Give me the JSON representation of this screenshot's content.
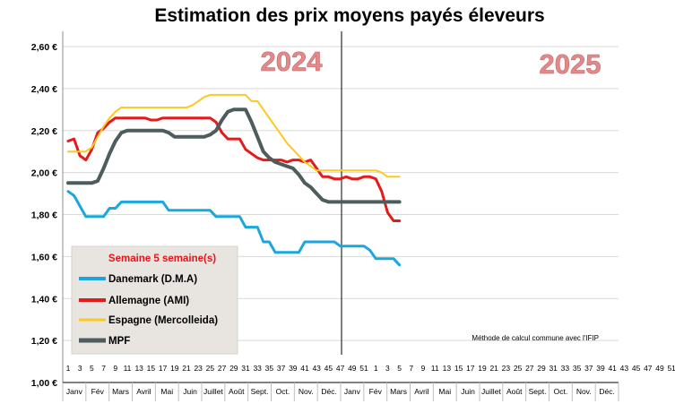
{
  "chart_data": {
    "type": "line",
    "title": "Estimation des prix moyens payés éleveurs",
    "ylim": [
      1.0,
      2.7
    ],
    "yticks": [
      "1,00 €",
      "1,20 €",
      "1,40 €",
      "1,60 €",
      "1,80 €",
      "2,00 €",
      "2,20 €",
      "2,40 €",
      "2,60 €"
    ],
    "ytick_values": [
      1.0,
      1.2,
      1.4,
      1.6,
      1.8,
      2.0,
      2.2,
      2.4,
      2.6
    ],
    "year_labels": [
      "2024",
      "2025"
    ],
    "week_ticks": [
      "1",
      "3",
      "5",
      "7",
      "9",
      "11",
      "13",
      "15",
      "17",
      "19",
      "21",
      "23",
      "25",
      "27",
      "29",
      "31",
      "33",
      "35",
      "37",
      "39",
      "41",
      "43",
      "45",
      "47",
      "49",
      "51",
      "1",
      "3",
      "5",
      "7",
      "9",
      "11",
      "13",
      "15",
      "17",
      "19",
      "21",
      "23",
      "25",
      "27",
      "29",
      "31",
      "33",
      "35",
      "37",
      "39",
      "41",
      "43",
      "45",
      "47",
      "49",
      "51"
    ],
    "months": [
      "Janv",
      "Fév",
      "Mars",
      "Avril",
      "Mai",
      "Juin",
      "Juillet",
      "Août",
      "Sept.",
      "Oct.",
      "Nov.",
      "Déc.",
      "Janv",
      "Fév",
      "Mars",
      "Avril",
      "Mai",
      "Juin",
      "Juillet",
      "Août",
      "Sept.",
      "Oct.",
      "Nov.",
      "Déc."
    ],
    "grid": true,
    "legend_position": "bottom-left",
    "legend_title": "Semaine 5 semaine(s)",
    "note": "Méthode de calcul commune avec l'IFIP",
    "series": [
      {
        "name": "Danemark (D.M.A)",
        "color": "#1aa6df",
        "x": [
          1,
          2,
          3,
          4,
          5,
          6,
          7,
          8,
          9,
          10,
          11,
          12,
          13,
          14,
          15,
          16,
          17,
          18,
          19,
          20,
          21,
          22,
          23,
          24,
          25,
          26,
          27,
          28,
          29,
          30,
          31,
          32,
          33,
          34,
          35,
          36,
          37,
          38,
          39,
          40,
          41,
          42,
          43,
          44,
          45,
          46,
          47,
          48,
          49,
          50,
          51,
          52,
          53,
          54,
          55,
          56,
          57
        ],
        "y": [
          1.91,
          1.89,
          1.84,
          1.79,
          1.79,
          1.79,
          1.79,
          1.83,
          1.83,
          1.86,
          1.86,
          1.86,
          1.86,
          1.86,
          1.86,
          1.86,
          1.86,
          1.82,
          1.82,
          1.82,
          1.82,
          1.82,
          1.82,
          1.82,
          1.82,
          1.79,
          1.79,
          1.79,
          1.79,
          1.79,
          1.74,
          1.74,
          1.74,
          1.67,
          1.67,
          1.62,
          1.62,
          1.62,
          1.62,
          1.62,
          1.67,
          1.67,
          1.67,
          1.67,
          1.67,
          1.67,
          1.65,
          1.65,
          1.65,
          1.65,
          1.65,
          1.63,
          1.59,
          1.59,
          1.59,
          1.59,
          1.56
        ]
      },
      {
        "name": "Allemagne (AMI)",
        "color": "#e31b1b",
        "x": [
          1,
          2,
          3,
          4,
          5,
          6,
          7,
          8,
          9,
          10,
          11,
          12,
          13,
          14,
          15,
          16,
          17,
          18,
          19,
          20,
          21,
          22,
          23,
          24,
          25,
          26,
          27,
          28,
          29,
          30,
          31,
          32,
          33,
          34,
          35,
          36,
          37,
          38,
          39,
          40,
          41,
          42,
          43,
          44,
          45,
          46,
          47,
          48,
          49,
          50,
          51,
          52,
          53,
          54,
          55,
          56,
          57
        ],
        "y": [
          2.15,
          2.16,
          2.08,
          2.06,
          2.11,
          2.19,
          2.21,
          2.24,
          2.26,
          2.26,
          2.26,
          2.26,
          2.26,
          2.26,
          2.25,
          2.25,
          2.26,
          2.26,
          2.26,
          2.26,
          2.26,
          2.26,
          2.26,
          2.26,
          2.26,
          2.24,
          2.19,
          2.16,
          2.16,
          2.16,
          2.11,
          2.09,
          2.07,
          2.06,
          2.06,
          2.06,
          2.06,
          2.05,
          2.06,
          2.06,
          2.05,
          2.06,
          2.02,
          1.98,
          1.98,
          1.97,
          1.97,
          1.98,
          1.97,
          1.97,
          1.98,
          1.98,
          1.97,
          1.91,
          1.81,
          1.77,
          1.77
        ]
      },
      {
        "name": "Espagne (Mercolleida)",
        "color": "#ffc81e",
        "x": [
          1,
          2,
          3,
          4,
          5,
          6,
          7,
          8,
          9,
          10,
          11,
          12,
          13,
          14,
          15,
          16,
          17,
          18,
          19,
          20,
          21,
          22,
          23,
          24,
          25,
          26,
          27,
          28,
          29,
          30,
          31,
          32,
          33,
          34,
          35,
          36,
          37,
          38,
          39,
          40,
          41,
          42,
          43,
          44,
          45,
          46,
          47,
          48,
          49,
          50,
          51,
          52,
          53,
          54,
          55,
          56,
          57
        ],
        "y": [
          2.1,
          2.1,
          2.1,
          2.1,
          2.12,
          2.17,
          2.22,
          2.26,
          2.29,
          2.31,
          2.31,
          2.31,
          2.31,
          2.31,
          2.31,
          2.31,
          2.31,
          2.31,
          2.31,
          2.31,
          2.31,
          2.32,
          2.34,
          2.36,
          2.37,
          2.37,
          2.37,
          2.37,
          2.37,
          2.37,
          2.37,
          2.34,
          2.34,
          2.3,
          2.26,
          2.22,
          2.18,
          2.14,
          2.11,
          2.08,
          2.05,
          2.03,
          2.01,
          2.01,
          2.01,
          2.01,
          2.01,
          2.01,
          2.01,
          2.01,
          2.01,
          2.01,
          2.01,
          2.0,
          1.98,
          1.98,
          1.98
        ]
      },
      {
        "name": "MPF",
        "color": "#4d5c5c",
        "x": [
          1,
          2,
          3,
          4,
          5,
          6,
          7,
          8,
          9,
          10,
          11,
          12,
          13,
          14,
          15,
          16,
          17,
          18,
          19,
          20,
          21,
          22,
          23,
          24,
          25,
          26,
          27,
          28,
          29,
          30,
          31,
          32,
          33,
          34,
          35,
          36,
          37,
          38,
          39,
          40,
          41,
          42,
          43,
          44,
          45,
          46,
          47,
          48,
          49,
          50,
          51,
          52,
          53,
          54,
          55,
          56,
          57
        ],
        "y": [
          1.95,
          1.95,
          1.95,
          1.95,
          1.95,
          1.96,
          2.02,
          2.09,
          2.15,
          2.19,
          2.2,
          2.2,
          2.2,
          2.2,
          2.2,
          2.2,
          2.2,
          2.19,
          2.17,
          2.17,
          2.17,
          2.17,
          2.17,
          2.17,
          2.18,
          2.2,
          2.25,
          2.29,
          2.3,
          2.3,
          2.3,
          2.24,
          2.17,
          2.1,
          2.07,
          2.05,
          2.04,
          2.03,
          2.02,
          1.99,
          1.95,
          1.93,
          1.9,
          1.87,
          1.86,
          1.86,
          1.86,
          1.86,
          1.86,
          1.86,
          1.86,
          1.86,
          1.86,
          1.86,
          1.86,
          1.86,
          1.86
        ]
      }
    ]
  }
}
